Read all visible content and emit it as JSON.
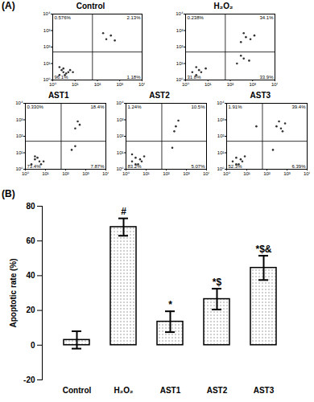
{
  "panel_labels": [
    "(A)",
    "(B)"
  ],
  "chart_data": [
    {
      "type": "scatter",
      "title": "Control",
      "x": [
        2,
        3,
        4,
        2.5,
        5,
        3,
        6,
        3.5,
        8,
        2,
        250,
        400,
        180,
        600
      ],
      "values": [
        2,
        3,
        2.5,
        4,
        3,
        5,
        4,
        2,
        3,
        6,
        300,
        500,
        700,
        250
      ],
      "xlim": [
        1,
        10000
      ],
      "ylim": [
        1,
        10000
      ],
      "xticks": [
        {
          "value": 1,
          "label": "10⁰"
        },
        {
          "value": 10,
          "label": "10¹"
        },
        {
          "value": 100,
          "label": "10²"
        },
        {
          "value": 1000,
          "label": "10³"
        },
        {
          "value": 10000,
          "label": "10⁴"
        }
      ],
      "yticks": [
        {
          "value": 1,
          "label": "10⁰"
        },
        {
          "value": 10,
          "label": "10¹"
        },
        {
          "value": 100,
          "label": "10²"
        },
        {
          "value": 1000,
          "label": "10³"
        },
        {
          "value": 10000,
          "label": "10⁴"
        }
      ],
      "log": true,
      "gate": [
        60,
        50
      ],
      "color": "#333333",
      "quadrant_labels": {
        "top-left": "0.576%",
        "top-right": "2.13%",
        "bottom-left": "96.1%",
        "bottom-right": "1.18%"
      }
    },
    {
      "type": "scatter",
      "title": "H₂O₂",
      "x": [
        2,
        3,
        4,
        3,
        5,
        8,
        300,
        500,
        800,
        400,
        1200,
        200,
        400,
        700,
        300
      ],
      "values": [
        3,
        2,
        4,
        6,
        3,
        5,
        200,
        400,
        300,
        700,
        500,
        10,
        20,
        15,
        30
      ],
      "xlim": [
        1,
        10000
      ],
      "ylim": [
        1,
        10000
      ],
      "xticks": [
        {
          "value": 1,
          "label": "10⁰"
        },
        {
          "value": 10,
          "label": "10¹"
        },
        {
          "value": 100,
          "label": "10²"
        },
        {
          "value": 1000,
          "label": "10³"
        },
        {
          "value": 10000,
          "label": "10⁴"
        }
      ],
      "yticks": [
        {
          "value": 1,
          "label": "10⁰"
        },
        {
          "value": 10,
          "label": "10¹"
        },
        {
          "value": 100,
          "label": "10²"
        },
        {
          "value": 1000,
          "label": "10³"
        },
        {
          "value": 10000,
          "label": "10⁴"
        }
      ],
      "log": true,
      "gate": [
        60,
        50
      ],
      "color": "#333333",
      "quadrant_labels": {
        "top-left": "0.238%",
        "top-right": "34.1%",
        "bottom-left": "31.8%",
        "bottom-right": "33.9%"
      }
    },
    {
      "type": "scatter",
      "title": "AST1",
      "x": [
        2,
        3,
        5,
        3,
        6,
        4,
        8,
        300,
        500,
        400,
        200,
        300
      ],
      "values": [
        2,
        4,
        3,
        6,
        2,
        5,
        3,
        300,
        500,
        800,
        15,
        25
      ],
      "xlim": [
        1,
        10000
      ],
      "ylim": [
        1,
        10000
      ],
      "xticks": [
        {
          "value": 1,
          "label": "10⁰"
        },
        {
          "value": 10,
          "label": "10¹"
        },
        {
          "value": 100,
          "label": "10²"
        },
        {
          "value": 1000,
          "label": "10³"
        },
        {
          "value": 10000,
          "label": "10⁴"
        }
      ],
      "yticks": [
        {
          "value": 1,
          "label": "10⁰"
        },
        {
          "value": 10,
          "label": "10¹"
        },
        {
          "value": 100,
          "label": "10²"
        },
        {
          "value": 1000,
          "label": "10³"
        },
        {
          "value": 10000,
          "label": "10⁴"
        }
      ],
      "log": true,
      "gate": [
        60,
        50
      ],
      "color": "#333333",
      "quadrant_labels": {
        "top-left": "0.330%",
        "top-right": "18.4%",
        "bottom-left": "73.4%",
        "bottom-right": "7.87%"
      }
    },
    {
      "type": "scatter",
      "title": "AST2",
      "x": [
        2,
        3,
        5,
        3,
        6,
        4,
        8,
        2,
        300,
        400,
        250,
        200
      ],
      "values": [
        3,
        2,
        4,
        5,
        3,
        2,
        6,
        8,
        400,
        900,
        200,
        20
      ],
      "xlim": [
        1,
        10000
      ],
      "ylim": [
        1,
        10000
      ],
      "xticks": [
        {
          "value": 1,
          "label": "10⁰"
        },
        {
          "value": 10,
          "label": "10¹"
        },
        {
          "value": 100,
          "label": "10²"
        },
        {
          "value": 1000,
          "label": "10³"
        },
        {
          "value": 10000,
          "label": "10⁴"
        }
      ],
      "yticks": [
        {
          "value": 1,
          "label": "10⁰"
        },
        {
          "value": 10,
          "label": "10¹"
        },
        {
          "value": 100,
          "label": "10²"
        },
        {
          "value": 1000,
          "label": "10³"
        },
        {
          "value": 10000,
          "label": "10⁴"
        }
      ],
      "log": true,
      "gate": [
        60,
        50
      ],
      "color": "#333333",
      "quadrant_labels": {
        "top-left": "1.24%",
        "top-right": "10.5%",
        "bottom-left": "83.2%",
        "bottom-right": "5.07%"
      }
    },
    {
      "type": "scatter",
      "title": "AST3",
      "x": [
        2,
        3,
        5,
        3,
        6,
        4,
        8,
        300,
        500,
        800,
        400,
        600,
        30,
        200
      ],
      "values": [
        3,
        2,
        4,
        5,
        3,
        2,
        6,
        400,
        300,
        600,
        800,
        200,
        400,
        15
      ],
      "xlim": [
        1,
        10000
      ],
      "ylim": [
        1,
        10000
      ],
      "xticks": [
        {
          "value": 1,
          "label": "10⁰"
        },
        {
          "value": 10,
          "label": "10¹"
        },
        {
          "value": 100,
          "label": "10²"
        },
        {
          "value": 1000,
          "label": "10³"
        },
        {
          "value": 10000,
          "label": "10⁴"
        }
      ],
      "yticks": [
        {
          "value": 1,
          "label": "10⁰"
        },
        {
          "value": 10,
          "label": "10¹"
        },
        {
          "value": 100,
          "label": "10²"
        },
        {
          "value": 1000,
          "label": "10³"
        },
        {
          "value": 10000,
          "label": "10⁴"
        }
      ],
      "log": true,
      "gate": [
        60,
        50
      ],
      "color": "#333333",
      "quadrant_labels": {
        "top-left": "1.91%",
        "top-right": "39.4%",
        "bottom-left": "52.3%",
        "bottom-right": "6.39%"
      }
    },
    {
      "type": "bar",
      "y_label": "Apoptotic rate (%)",
      "categories": [
        "Control",
        "H₂O₂",
        "AST1",
        "AST2",
        "AST3"
      ],
      "values": [
        3,
        68,
        13.5,
        26.5,
        44.5
      ],
      "errors": [
        5,
        5,
        6,
        6,
        7
      ],
      "annotations": [
        null,
        "#",
        "*",
        "*$",
        "*$&"
      ],
      "ylim": [
        -20,
        80
      ],
      "yticks": [
        -20,
        0,
        20,
        40,
        60,
        80
      ],
      "color": "#808080"
    }
  ]
}
